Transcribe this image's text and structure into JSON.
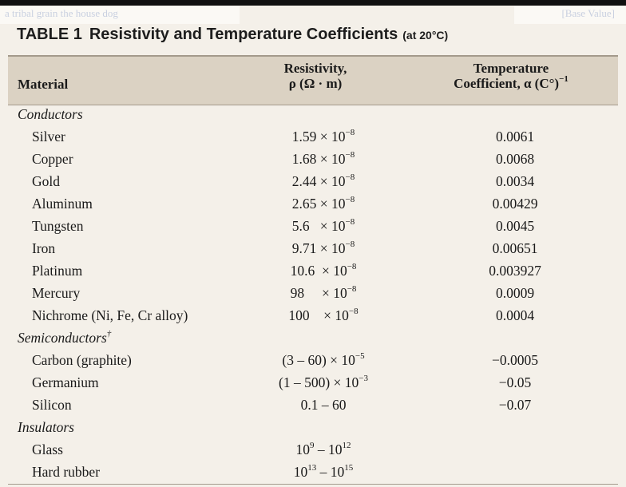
{
  "faint_left": "a tribal grain the house dog",
  "faint_right": "[Base Value]",
  "table_number": "TABLE 1",
  "table_title": "Resistivity and Temperature Coefficients",
  "table_subtitle": "(at 20°C)",
  "headers": {
    "material": "Material",
    "resistivity_line1": "Resistivity,",
    "resistivity_line2": "ρ (Ω · m)",
    "tc_line1": "Temperature",
    "tc_line2": "Coefficient, α (C°)",
    "tc_exp": "−1"
  },
  "rows": [
    {
      "type": "category",
      "label": "Conductors",
      "dagger": ""
    },
    {
      "type": "data",
      "material": "Silver",
      "mant": "1.59 × 10",
      "exp": "−8",
      "tc": "0.0061"
    },
    {
      "type": "data",
      "material": "Copper",
      "mant": "1.68 × 10",
      "exp": "−8",
      "tc": "0.0068"
    },
    {
      "type": "data",
      "material": "Gold",
      "mant": "2.44 × 10",
      "exp": "−8",
      "tc": "0.0034"
    },
    {
      "type": "data",
      "material": "Aluminum",
      "mant": "2.65 × 10",
      "exp": "−8",
      "tc": "0.00429"
    },
    {
      "type": "data",
      "material": "Tungsten",
      "mant": "5.6   × 10",
      "exp": "−8",
      "tc": "0.0045"
    },
    {
      "type": "data",
      "material": "Iron",
      "mant": "9.71 × 10",
      "exp": "−8",
      "tc": "0.00651"
    },
    {
      "type": "data",
      "material": "Platinum",
      "mant": "10.6  × 10",
      "exp": "−8",
      "tc": "0.003927"
    },
    {
      "type": "data",
      "material": "Mercury",
      "mant": "98     × 10",
      "exp": "−8",
      "tc": "0.0009"
    },
    {
      "type": "data",
      "material": "Nichrome (Ni, Fe, Cr alloy)",
      "mant": "100    × 10",
      "exp": "−8",
      "tc": "0.0004"
    },
    {
      "type": "category",
      "label": "Semiconductors",
      "dagger": "†"
    },
    {
      "type": "data",
      "material": "Carbon (graphite)",
      "mant": "(3 – 60) × 10",
      "exp": "−5",
      "tc": "−0.0005"
    },
    {
      "type": "data",
      "material": "Germanium",
      "mant": "(1 – 500) × 10",
      "exp": "−3",
      "tc": "−0.05"
    },
    {
      "type": "data",
      "material": "Silicon",
      "mant": "0.1 – 60",
      "exp": "",
      "tc": "−0.07"
    },
    {
      "type": "category",
      "label": "Insulators",
      "dagger": ""
    },
    {
      "type": "range",
      "material": "Glass",
      "a": "10",
      "ae": "9",
      "b": "10",
      "be": "12",
      "tc": ""
    },
    {
      "type": "range",
      "material": "Hard rubber",
      "a": "10",
      "ae": "13",
      "b": "10",
      "be": "15",
      "tc": ""
    }
  ]
}
